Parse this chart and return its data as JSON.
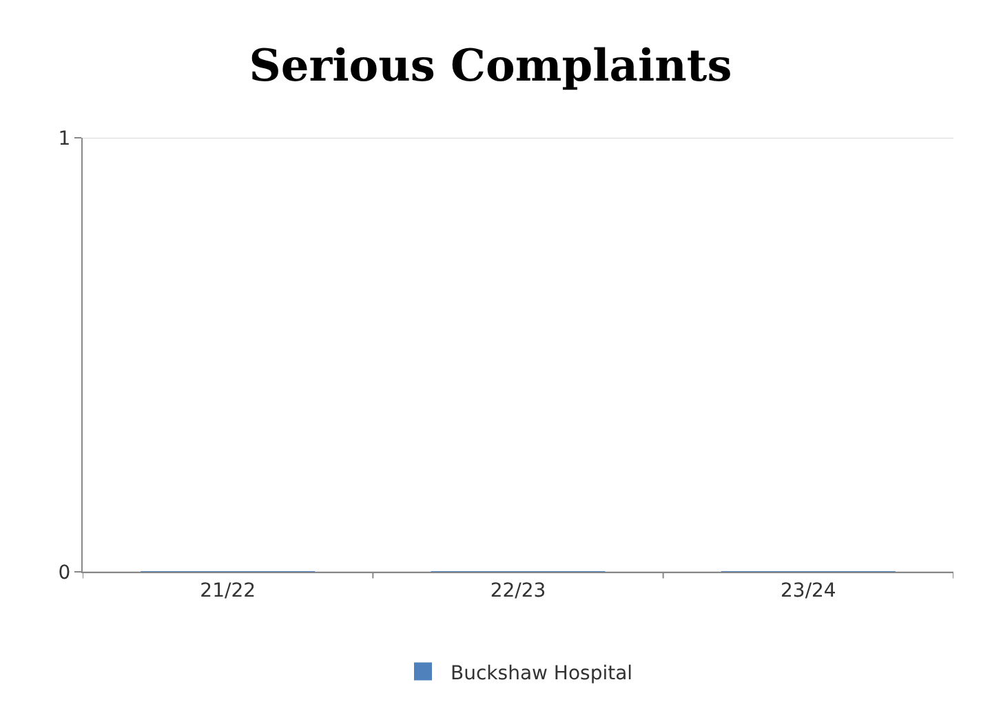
{
  "chart_data": {
    "type": "bar",
    "title": "Serious Complaints",
    "categories": [
      "21/22",
      "22/23",
      "23/24"
    ],
    "series": [
      {
        "name": "Buckshaw Hospital",
        "color": "#4f81bd",
        "values": [
          0,
          0,
          0
        ]
      }
    ],
    "ylim": [
      0,
      1
    ],
    "yticks": [
      0,
      1
    ],
    "grid": "y",
    "legend": "bottom"
  }
}
